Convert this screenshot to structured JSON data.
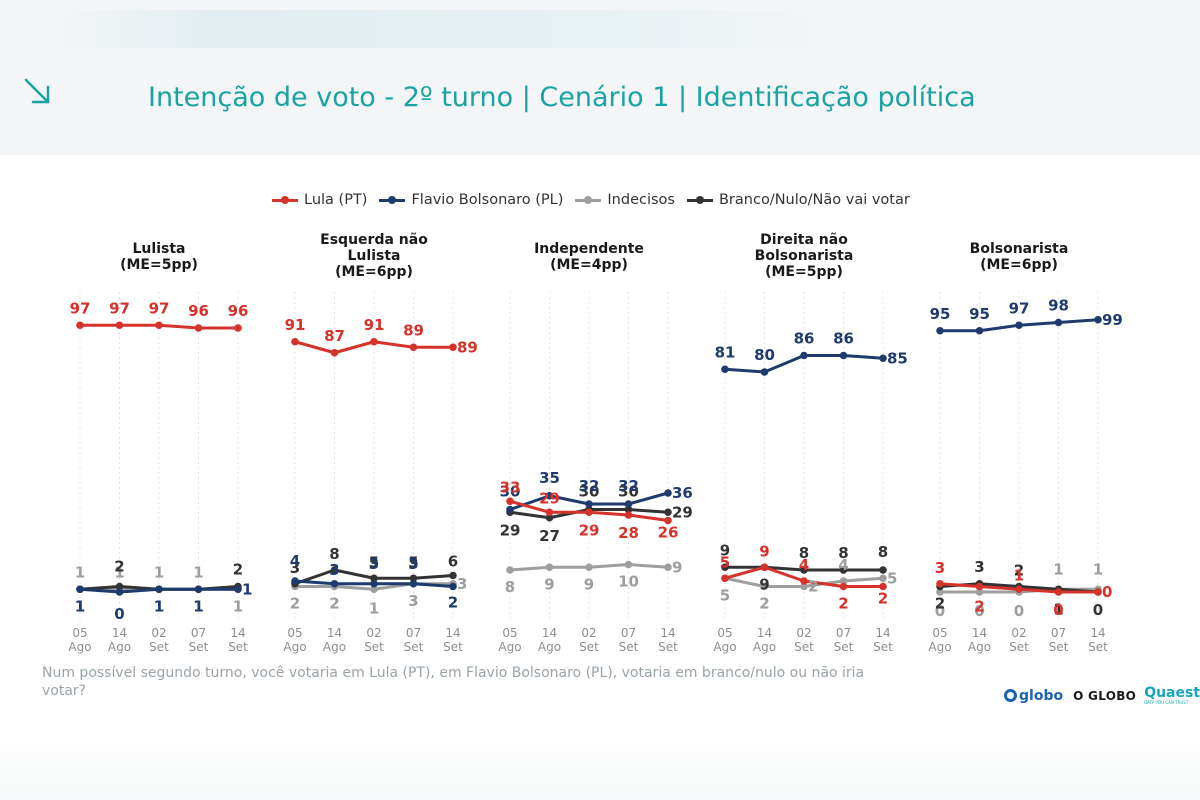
{
  "title": "Intenção de voto - 2º turno | Cenário 1 | Identificação política",
  "header_icon": "arrow-down-right-icon",
  "legend": [
    {
      "label": "Lula (PT)",
      "color": "#d6322c"
    },
    {
      "label": "Flavio Bolsonaro (PL)",
      "color": "#1f3b6e"
    },
    {
      "label": "Indecisos",
      "color": "#9e9e9e"
    },
    {
      "label": "Branco/Nulo/Não vai votar",
      "color": "#333333"
    }
  ],
  "question": "Num possível segundo turno, você votaria em Lula (PT), em Flavio Bolsonaro (PL), votaria em branco/nulo ou não iria votar?",
  "logos": {
    "globo": "globo",
    "oglobo": "O GLOBO",
    "quaest": "Quaest",
    "quaest_tagline": "DATA YOU CAN TRUST"
  },
  "chart_data": {
    "type": "line",
    "x_dates": [
      [
        "05",
        "Ago"
      ],
      [
        "14",
        "Ago"
      ],
      [
        "02",
        "Set"
      ],
      [
        "07",
        "Set"
      ],
      [
        "14",
        "Set"
      ]
    ],
    "ylim": [
      0,
      100
    ],
    "series_names": [
      "Lula (PT)",
      "Flavio Bolsonaro (PL)",
      "Indecisos",
      "Branco/Nulo/Não vai votar"
    ],
    "series_colors": [
      "#d6322c",
      "#1f3b6e",
      "#9e9e9e",
      "#333333"
    ],
    "panels": [
      {
        "title": [
          "Lulista",
          "(ME=5pp)"
        ],
        "series": [
          [
            97,
            97,
            97,
            96,
            96
          ],
          [
            1,
            0,
            1,
            1,
            1
          ],
          [
            1,
            1,
            1,
            1,
            1
          ],
          [
            1,
            2,
            1,
            1,
            2
          ]
        ]
      },
      {
        "title": [
          "Esquerda não",
          "Lulista",
          "(ME=6pp)"
        ],
        "series": [
          [
            91,
            87,
            91,
            89,
            89
          ],
          [
            4,
            3,
            3,
            3,
            2
          ],
          [
            2,
            2,
            1,
            3,
            3
          ],
          [
            3,
            8,
            5,
            5,
            6
          ]
        ]
      },
      {
        "title": [
          "Independente",
          "(ME=4pp)"
        ],
        "series": [
          [
            33,
            29,
            29,
            28,
            26
          ],
          [
            30,
            35,
            32,
            32,
            36
          ],
          [
            8,
            9,
            9,
            10,
            9
          ],
          [
            29,
            27,
            30,
            30,
            29
          ]
        ]
      },
      {
        "title": [
          "Direita não",
          "Bolsonarista",
          "(ME=5pp)"
        ],
        "series": [
          [
            5,
            9,
            4,
            2,
            2
          ],
          [
            81,
            80,
            86,
            86,
            85
          ],
          [
            5,
            2,
            2,
            4,
            5
          ],
          [
            9,
            9,
            8,
            8,
            8
          ]
        ]
      },
      {
        "title": [
          "Bolsonarista",
          "(ME=6pp)"
        ],
        "series": [
          [
            3,
            2,
            1,
            0,
            0
          ],
          [
            95,
            95,
            97,
            98,
            99
          ],
          [
            0,
            0,
            0,
            1,
            1
          ],
          [
            2,
            3,
            2,
            1,
            0
          ]
        ]
      }
    ]
  }
}
